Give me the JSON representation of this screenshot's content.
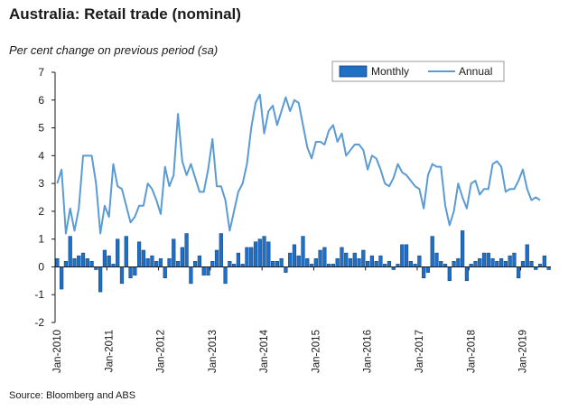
{
  "title": "Australia: Retail trade (nominal)",
  "subtitle": "Per cent change on previous period (sa)",
  "source": "Source: Bloomberg and ABS",
  "colors": {
    "bar_fill": "#1f6fc4",
    "bar_edge": "#0b3f82",
    "line": "#5b9bd5",
    "axis": "#1a1a1a"
  },
  "chart_data": {
    "type": "bar+line",
    "ylim": [
      -2,
      7
    ],
    "yticks": [
      "-2",
      "-1",
      "0",
      "1",
      "2",
      "3",
      "4",
      "5",
      "6",
      "7"
    ],
    "xtick_labels": [
      "Jan-2010",
      "Jan-2011",
      "Jan-2012",
      "Jan-2013",
      "Jan-2014",
      "Jan-2015",
      "Jan-2016",
      "Jan-2017",
      "Jan-2018",
      "Jan-2019"
    ],
    "grid": false,
    "legend_placement": "top-right",
    "series": [
      {
        "name": "Monthly",
        "type": "bar",
        "values": [
          0.3,
          -0.8,
          0.2,
          1.1,
          0.3,
          0.4,
          0.5,
          0.3,
          0.2,
          -0.1,
          -0.9,
          0.6,
          0.4,
          0.1,
          1.0,
          -0.6,
          1.1,
          -0.4,
          -0.3,
          0.9,
          0.6,
          0.3,
          0.4,
          0.2,
          0.3,
          -0.4,
          0.3,
          1.0,
          0.2,
          0.7,
          1.2,
          -0.6,
          0.2,
          0.4,
          -0.3,
          -0.3,
          0.2,
          0.6,
          1.2,
          -0.6,
          0.2,
          0.1,
          0.5,
          0.1,
          0.7,
          0.7,
          0.9,
          1.0,
          1.1,
          0.9,
          0.2,
          0.2,
          0.3,
          -0.2,
          0.5,
          0.8,
          0.4,
          1.1,
          0.3,
          0.1,
          0.3,
          0.6,
          0.7,
          0.1,
          0.1,
          0.3,
          0.7,
          0.5,
          0.3,
          0.5,
          0.3,
          0.6,
          0.2,
          0.4,
          0.2,
          0.4,
          0.1,
          0.2,
          -0.1,
          0.1,
          0.8,
          0.8,
          0.2,
          0.1,
          0.4,
          -0.4,
          -0.2,
          1.1,
          0.5,
          0.2,
          0.1,
          -0.5,
          0.2,
          0.3,
          1.3,
          -0.5,
          0.1,
          0.2,
          0.3,
          0.5,
          0.5,
          0.3,
          0.2,
          0.3,
          0.2,
          0.4,
          0.5,
          -0.4,
          0.2,
          0.8,
          0.2,
          -0.1,
          0.1,
          0.4,
          -0.1
        ]
      },
      {
        "name": "Annual",
        "type": "line",
        "values": [
          3.0,
          3.5,
          1.2,
          2.1,
          1.3,
          2.1,
          4.0,
          4.0,
          4.0,
          3.0,
          1.2,
          2.2,
          1.8,
          3.7,
          2.9,
          2.8,
          2.2,
          1.6,
          1.8,
          2.2,
          2.2,
          3.0,
          2.8,
          2.4,
          1.9,
          3.6,
          2.9,
          3.3,
          5.5,
          3.8,
          3.3,
          3.7,
          3.2,
          2.7,
          2.7,
          3.5,
          4.6,
          2.9,
          2.9,
          2.4,
          1.3,
          2.0,
          2.7,
          3.0,
          3.7,
          5.0,
          5.9,
          6.2,
          4.8,
          5.6,
          5.8,
          5.1,
          5.6,
          6.1,
          5.6,
          6.0,
          5.9,
          5.1,
          4.3,
          3.9,
          4.5,
          4.5,
          4.4,
          4.9,
          5.1,
          4.5,
          4.8,
          4.0,
          4.2,
          4.4,
          4.4,
          4.2,
          3.5,
          4.0,
          3.9,
          3.5,
          3.0,
          2.9,
          3.2,
          3.7,
          3.4,
          3.3,
          3.1,
          2.9,
          2.8,
          2.1,
          3.3,
          3.7,
          3.6,
          3.6,
          2.2,
          1.5,
          2.0,
          3.0,
          2.5,
          2.1,
          3.0,
          3.1,
          2.6,
          2.8,
          2.8,
          3.7,
          3.8,
          3.6,
          2.7,
          2.8,
          2.8,
          3.1,
          3.5,
          2.8,
          2.4,
          2.5,
          2.4
        ]
      }
    ]
  }
}
